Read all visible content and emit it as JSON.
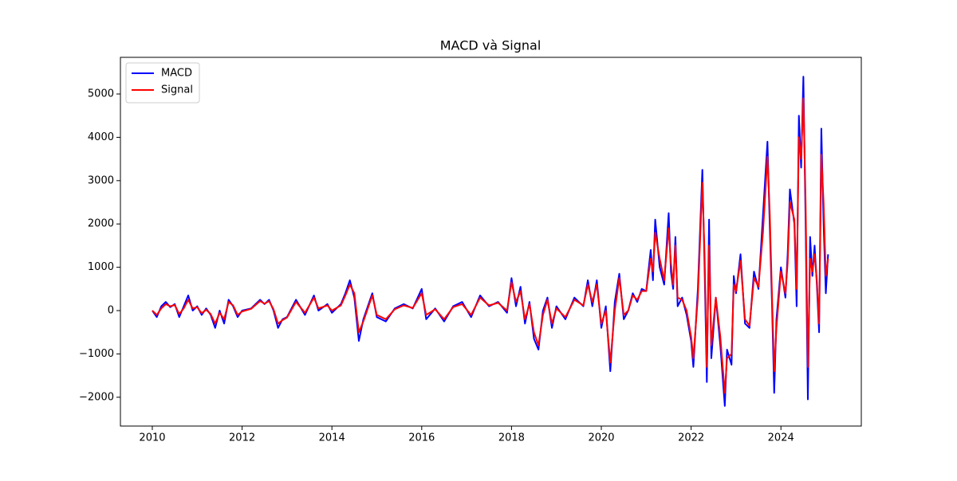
{
  "chart_data": {
    "type": "line",
    "title": "MACD và Signal",
    "x": [
      2010.0,
      2010.1,
      2010.2,
      2010.3,
      2010.4,
      2010.5,
      2010.6,
      2010.7,
      2010.8,
      2010.9,
      2011.0,
      2011.1,
      2011.2,
      2011.3,
      2011.4,
      2011.5,
      2011.6,
      2011.7,
      2011.8,
      2011.9,
      2012.0,
      2012.2,
      2012.4,
      2012.5,
      2012.6,
      2012.7,
      2012.8,
      2012.9,
      2013.0,
      2013.2,
      2013.4,
      2013.6,
      2013.7,
      2013.9,
      2014.0,
      2014.2,
      2014.3,
      2014.4,
      2014.5,
      2014.6,
      2014.7,
      2014.9,
      2015.0,
      2015.2,
      2015.4,
      2015.6,
      2015.8,
      2016.0,
      2016.1,
      2016.3,
      2016.5,
      2016.7,
      2016.9,
      2017.1,
      2017.3,
      2017.5,
      2017.7,
      2017.9,
      2018.0,
      2018.1,
      2018.2,
      2018.3,
      2018.4,
      2018.5,
      2018.6,
      2018.7,
      2018.8,
      2018.9,
      2019.0,
      2019.2,
      2019.4,
      2019.6,
      2019.7,
      2019.8,
      2019.9,
      2020.0,
      2020.1,
      2020.2,
      2020.3,
      2020.4,
      2020.5,
      2020.6,
      2020.7,
      2020.8,
      2020.9,
      2021.0,
      2021.1,
      2021.15,
      2021.2,
      2021.3,
      2021.4,
      2021.5,
      2021.55,
      2021.6,
      2021.65,
      2021.7,
      2021.8,
      2021.9,
      2022.0,
      2022.05,
      2022.15,
      2022.25,
      2022.3,
      2022.35,
      2022.4,
      2022.45,
      2022.55,
      2022.65,
      2022.75,
      2022.8,
      2022.9,
      2022.95,
      2023.0,
      2023.1,
      2023.2,
      2023.3,
      2023.4,
      2023.5,
      2023.6,
      2023.7,
      2023.75,
      2023.8,
      2023.85,
      2023.9,
      2024.0,
      2024.1,
      2024.15,
      2024.2,
      2024.3,
      2024.35,
      2024.4,
      2024.45,
      2024.5,
      2024.55,
      2024.6,
      2024.65,
      2024.7,
      2024.75,
      2024.8,
      2024.85,
      2024.9,
      2024.95,
      2025.0,
      2025.05
    ],
    "series": [
      {
        "name": "MACD",
        "color": "#0000ff",
        "values": [
          0,
          -150,
          100,
          200,
          80,
          150,
          -150,
          100,
          350,
          0,
          100,
          -100,
          50,
          -100,
          -400,
          0,
          -300,
          250,
          100,
          -150,
          0,
          50,
          250,
          150,
          250,
          0,
          -400,
          -200,
          -150,
          250,
          -100,
          350,
          0,
          150,
          -50,
          150,
          400,
          700,
          300,
          -700,
          -200,
          400,
          -150,
          -250,
          50,
          150,
          50,
          500,
          -200,
          50,
          -250,
          100,
          200,
          -150,
          350,
          100,
          200,
          -50,
          750,
          100,
          550,
          -300,
          200,
          -650,
          -900,
          0,
          300,
          -400,
          100,
          -200,
          300,
          100,
          700,
          100,
          700,
          -400,
          100,
          -1400,
          200,
          850,
          -200,
          0,
          400,
          200,
          500,
          450,
          1400,
          700,
          2100,
          1000,
          600,
          2250,
          900,
          500,
          1700,
          100,
          300,
          -100,
          -700,
          -1300,
          500,
          3250,
          1000,
          -1650,
          2100,
          -1100,
          300,
          -800,
          -2200,
          -900,
          -1250,
          800,
          400,
          1300,
          -300,
          -400,
          900,
          500,
          2200,
          3900,
          2000,
          200,
          -1900,
          -200,
          1000,
          300,
          1300,
          2800,
          2000,
          100,
          4500,
          3300,
          5400,
          2000,
          -2050,
          1700,
          800,
          1500,
          600,
          -500,
          4200,
          2000,
          400,
          1300
        ]
      },
      {
        "name": "Signal",
        "color": "#ff0000",
        "values": [
          0,
          -100,
          50,
          150,
          100,
          130,
          -80,
          50,
          250,
          50,
          80,
          -60,
          20,
          -80,
          -300,
          -50,
          -200,
          200,
          120,
          -100,
          -20,
          40,
          220,
          160,
          220,
          30,
          -300,
          -220,
          -160,
          200,
          -50,
          300,
          50,
          120,
          0,
          120,
          350,
          600,
          400,
          -500,
          -250,
          350,
          -100,
          -200,
          30,
          120,
          60,
          400,
          -100,
          30,
          -200,
          80,
          150,
          -100,
          300,
          120,
          180,
          0,
          650,
          200,
          450,
          -200,
          150,
          -500,
          -800,
          -100,
          250,
          -300,
          50,
          -150,
          250,
          120,
          600,
          200,
          600,
          -300,
          0,
          -1200,
          0,
          750,
          -100,
          0,
          350,
          250,
          450,
          450,
          1200,
          900,
          1800,
          1200,
          700,
          1900,
          1100,
          600,
          1500,
          300,
          250,
          0,
          -600,
          -1100,
          300,
          2950,
          1300,
          -1300,
          1500,
          -800,
          300,
          -600,
          -1900,
          -1100,
          -1000,
          600,
          450,
          1150,
          -200,
          -350,
          750,
          550,
          1800,
          3550,
          2300,
          400,
          -1400,
          -400,
          900,
          400,
          1100,
          2500,
          2100,
          500,
          4000,
          3500,
          4900,
          2500,
          -1300,
          1200,
          900,
          1300,
          700,
          -300,
          3600,
          2500,
          800,
          1200
        ]
      }
    ],
    "xlim": [
      2009.29,
      2025.79
    ],
    "ylim": [
      -2665,
      5846
    ],
    "xticks": [
      2010,
      2012,
      2014,
      2016,
      2018,
      2020,
      2022,
      2024
    ],
    "yticks": [
      {
        "value": -2000,
        "label": "−2000"
      },
      {
        "value": -1000,
        "label": "−1000"
      },
      0,
      1000,
      2000,
      3000,
      4000,
      5000
    ],
    "legend": "upper left"
  }
}
